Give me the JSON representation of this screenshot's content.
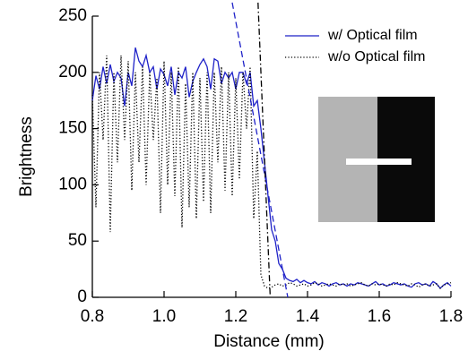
{
  "chart_data": {
    "type": "line",
    "xlabel": "Distance (mm)",
    "ylabel": "Brightness",
    "xlim": [
      0.8,
      1.8
    ],
    "ylim": [
      0,
      250
    ],
    "xticks": [
      0.8,
      {
        "value": 1,
        "label": "1.0"
      },
      1.2,
      1.4,
      1.6,
      1.8
    ],
    "yticks": [
      0,
      50,
      100,
      150,
      200,
      250
    ],
    "legend": "upper right",
    "x": [
      0.8,
      0.81,
      0.82,
      0.83,
      0.84,
      0.85,
      0.86,
      0.87,
      0.88,
      0.89,
      0.9,
      0.91,
      0.92,
      0.93,
      0.94,
      0.95,
      0.96,
      0.97,
      0.98,
      0.99,
      1,
      1.01,
      1.02,
      1.03,
      1.04,
      1.05,
      1.06,
      1.07,
      1.08,
      1.09,
      1.1,
      1.11,
      1.12,
      1.13,
      1.14,
      1.15,
      1.16,
      1.17,
      1.18,
      1.19,
      1.2,
      1.21,
      1.22,
      1.23,
      1.24,
      1.25,
      1.26,
      1.27,
      1.28,
      1.29,
      1.3,
      1.31,
      1.32,
      1.33,
      1.34,
      1.35,
      1.36,
      1.37,
      1.38,
      1.39,
      1.4,
      1.41,
      1.42,
      1.43,
      1.44,
      1.45,
      1.46,
      1.47,
      1.48,
      1.49,
      1.5,
      1.51,
      1.52,
      1.53,
      1.54,
      1.55,
      1.56,
      1.57,
      1.58,
      1.59,
      1.6,
      1.61,
      1.62,
      1.63,
      1.64,
      1.65,
      1.66,
      1.67,
      1.68,
      1.69,
      1.7,
      1.71,
      1.72,
      1.73,
      1.74,
      1.75,
      1.76,
      1.77,
      1.78,
      1.79,
      1.8
    ],
    "series": [
      {
        "name": "w/ Optical film",
        "color": "#1f22c8",
        "dash": "solid",
        "values": [
          175,
          197,
          185,
          205,
          190,
          207,
          192,
          200,
          195,
          170,
          200,
          188,
          222,
          210,
          205,
          215,
          200,
          205,
          185,
          203,
          198,
          188,
          205,
          180,
          200,
          195,
          205,
          178,
          192,
          200,
          207,
          212,
          205,
          185,
          212,
          210,
          190,
          200,
          195,
          200,
          185,
          200,
          200,
          190,
          200,
          170,
          175,
          150,
          120,
          90,
          60,
          50,
          30,
          25,
          17,
          15,
          14,
          16,
          13,
          15,
          13,
          12,
          14,
          11,
          13,
          12,
          10,
          12,
          13,
          11,
          12,
          10,
          12,
          11,
          13,
          12,
          11,
          10,
          12,
          14,
          11,
          12,
          10,
          11,
          13,
          12,
          11,
          12,
          10,
          9,
          12,
          13,
          11,
          12,
          10,
          14,
          12,
          8,
          11,
          13,
          10
        ]
      },
      {
        "name": "w/o Optical film",
        "color": "#000000",
        "dash": "dotted",
        "values": [
          180,
          80,
          200,
          140,
          215,
          58,
          200,
          120,
          215,
          140,
          210,
          95,
          200,
          120,
          205,
          100,
          200,
          140,
          195,
          75,
          210,
          100,
          200,
          90,
          205,
          62,
          190,
          80,
          200,
          70,
          195,
          85,
          200,
          75,
          200,
          120,
          205,
          95,
          200,
          90,
          195,
          105,
          200,
          150,
          205,
          70,
          130,
          20,
          10,
          8,
          9,
          11,
          12,
          10,
          11,
          13,
          12,
          10,
          11,
          12,
          10,
          11,
          13,
          12,
          10,
          11,
          12,
          11,
          10,
          12,
          11,
          12,
          10,
          11,
          12,
          13,
          11,
          10,
          12,
          11,
          12,
          11,
          10,
          12,
          11,
          13,
          12,
          11,
          10,
          12,
          11,
          9,
          11,
          12,
          10,
          11,
          12,
          8,
          11,
          12,
          13
        ]
      },
      {
        "color": "#1f22c8",
        "dash": "dashed",
        "x": [
          1.19,
          1.345
        ],
        "values": [
          262,
          0
        ]
      },
      {
        "color": "#000000",
        "dash": "dashdot",
        "x": [
          1.262,
          1.296
        ],
        "values": [
          262,
          0
        ]
      }
    ]
  }
}
